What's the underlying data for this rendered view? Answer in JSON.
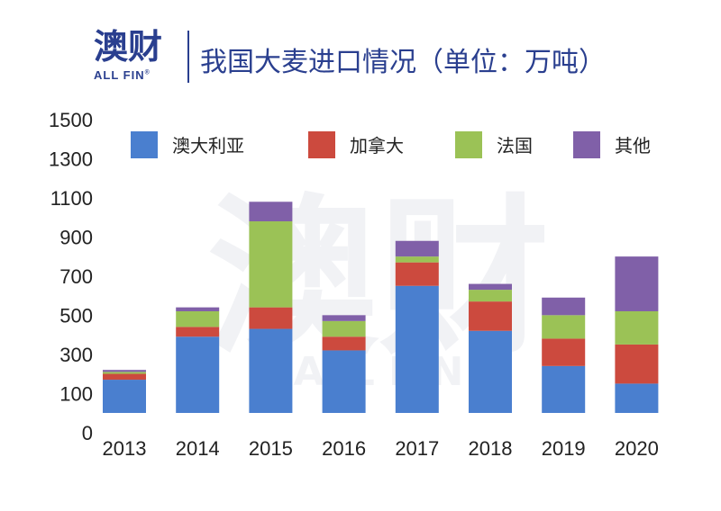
{
  "header": {
    "logo_cn": "澳财",
    "logo_en": "ALL FIN",
    "logo_reg": "®",
    "title": "我国大麦进口情况（单位：万吨）"
  },
  "watermark": {
    "cn": "澳财",
    "en": "ALL FIN"
  },
  "colors": {
    "brand": "#2a3f8f",
    "australia": "#4a7fcf",
    "canada": "#cc4a3e",
    "france": "#9bc256",
    "others": "#8060a8"
  },
  "chart_data": {
    "type": "bar",
    "stacked": true,
    "title": "我国大麦进口情况（单位：万吨）",
    "categories": [
      "2013",
      "2014",
      "2015",
      "2016",
      "2017",
      "2018",
      "2019",
      "2020"
    ],
    "y_ticks": [
      "0",
      "100",
      "300",
      "500",
      "700",
      "900",
      "1100",
      "1300",
      "1500"
    ],
    "ylim": [
      0,
      1500
    ],
    "grid": false,
    "legend_position": "top",
    "series": [
      {
        "name": "澳大利亚",
        "color": "#4a7fcf",
        "values": [
          170,
          390,
          430,
          320,
          650,
          420,
          240,
          150
        ]
      },
      {
        "name": "加拿大",
        "color": "#cc4a3e",
        "values": [
          30,
          50,
          110,
          70,
          120,
          150,
          140,
          200
        ]
      },
      {
        "name": "法国",
        "color": "#9bc256",
        "values": [
          10,
          80,
          440,
          80,
          30,
          60,
          120,
          170
        ]
      },
      {
        "name": "其他",
        "color": "#8060a8",
        "values": [
          10,
          20,
          100,
          30,
          80,
          30,
          90,
          280
        ]
      }
    ]
  }
}
